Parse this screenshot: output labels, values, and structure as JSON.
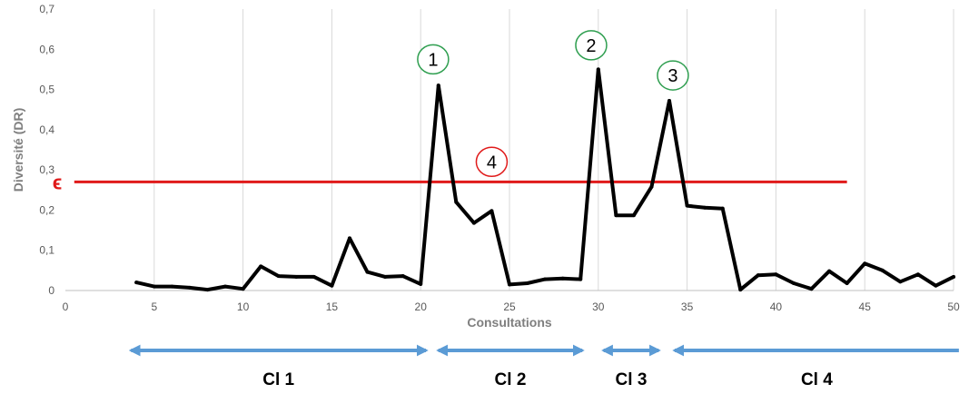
{
  "chart_data": {
    "type": "line",
    "title": "",
    "xlabel": "Consultations",
    "ylabel": "Diversité (DR)",
    "xlim": [
      0,
      50
    ],
    "ylim": [
      0,
      0.7
    ],
    "x_ticks": [
      "0",
      "5",
      "10",
      "15",
      "20",
      "25",
      "30",
      "35",
      "40",
      "45",
      "50"
    ],
    "y_ticks": [
      "0",
      "0,1",
      "0,2",
      "0,3",
      "0,4",
      "0,5",
      "0,6",
      "0,7"
    ],
    "grid": "vertical",
    "series": [
      {
        "color": "#000000",
        "x": [
          4,
          5,
          6,
          7,
          8,
          9,
          10,
          11,
          12,
          13,
          14,
          15,
          16,
          17,
          18,
          19,
          20,
          21,
          22,
          23,
          24,
          25,
          26,
          27,
          28,
          29,
          30,
          31,
          32,
          33,
          34,
          35,
          36,
          37,
          38,
          39,
          40,
          41,
          42,
          43,
          44,
          45,
          46,
          47,
          48,
          49,
          50
        ],
        "values": [
          0.02,
          0.01,
          0.01,
          0.007,
          0.002,
          0.01,
          0.004,
          0.06,
          0.036,
          0.034,
          0.034,
          0.012,
          0.13,
          0.046,
          0.034,
          0.036,
          0.016,
          0.51,
          0.22,
          0.168,
          0.198,
          0.015,
          0.018,
          0.028,
          0.03,
          0.028,
          0.55,
          0.187,
          0.187,
          0.258,
          0.472,
          0.211,
          0.206,
          0.204,
          0.002,
          0.038,
          0.04,
          0.018,
          0.004,
          0.048,
          0.018,
          0.067,
          0.05,
          0.022,
          0.04,
          0.012,
          0.034
        ]
      }
    ],
    "threshold": {
      "symbol": "ϵ",
      "value": 0.27,
      "color": "#e01a1a",
      "x_start": 0.5,
      "x_end": 44
    },
    "annotations": [
      {
        "label": "1",
        "x": 20.7,
        "y": 0.575,
        "color": "#2e9e4f"
      },
      {
        "label": "2",
        "x": 29.6,
        "y": 0.61,
        "color": "#2e9e4f"
      },
      {
        "label": "3",
        "x": 34.2,
        "y": 0.535,
        "color": "#2e9e4f"
      },
      {
        "label": "4",
        "x": 24.0,
        "y": 0.32,
        "color": "#e01a1a"
      }
    ],
    "clusters": [
      {
        "label": "Cl 1",
        "x_start": 3.7,
        "x_end": 20.3
      },
      {
        "label": "Cl 2",
        "x_start": 21.0,
        "x_end": 29.1
      },
      {
        "label": "Cl 3",
        "x_start": 30.3,
        "x_end": 33.4
      },
      {
        "label": "Cl 4",
        "x_start": 34.3,
        "x_end": 50.3
      }
    ],
    "cluster_arrow_color": "#5b9bd5"
  }
}
